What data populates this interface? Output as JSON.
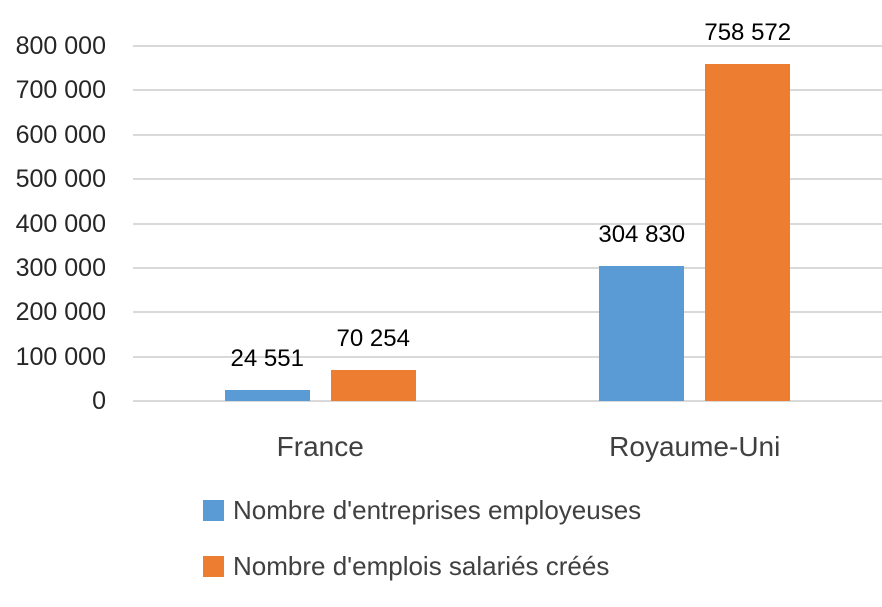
{
  "chart_data": {
    "type": "bar",
    "title": "",
    "categories": [
      "France",
      "Royaume-Uni"
    ],
    "series": [
      {
        "name": "Nombre d'entreprises employeuses",
        "color": "#5B9BD5",
        "values": [
          24551,
          304830
        ],
        "value_labels": [
          "24 551",
          "304 830"
        ]
      },
      {
        "name": "Nombre d'emplois salariés créés",
        "color": "#ED7D31",
        "values": [
          70254,
          758572
        ],
        "value_labels": [
          "70 254",
          "758 572"
        ]
      }
    ],
    "y_axis": {
      "min": 0,
      "max": 800000,
      "step": 100000,
      "tick_labels": [
        "0",
        "100 000",
        "200 000",
        "300 000",
        "400 000",
        "500 000",
        "600 000",
        "700 000",
        "800 000"
      ]
    },
    "xlabel": "",
    "ylabel": "",
    "grid": true,
    "legend_position": "bottom-left",
    "colors": {
      "gridline": "#D9D9D9",
      "tick_text": "#262626",
      "category_text": "#404040",
      "legend_text": "#404040",
      "data_label": "#000000",
      "background": "#FFFFFF"
    }
  }
}
